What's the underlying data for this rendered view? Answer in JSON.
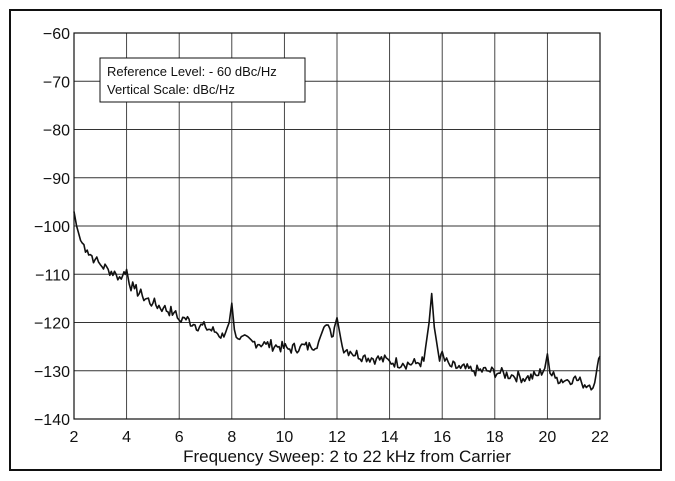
{
  "chart_data": {
    "type": "line",
    "title": "",
    "xlabel": "Frequency Sweep: 2 to 22 kHz from Carrier",
    "ylabel": "",
    "xlim": [
      2,
      22
    ],
    "ylim": [
      -140,
      -60
    ],
    "xticks": [
      2,
      4,
      6,
      8,
      10,
      12,
      14,
      16,
      18,
      20,
      22
    ],
    "yticks": [
      -60,
      -70,
      -80,
      -90,
      -100,
      -110,
      -120,
      -130,
      -140
    ],
    "grid": true,
    "legend": "none",
    "annotation": {
      "lines": [
        "Reference Level: - 60 dBc/Hz",
        "Vertical Scale: dBc/Hz"
      ],
      "placement": "top-left"
    },
    "series": [
      {
        "x": [
          2.0,
          2.1,
          2.25,
          2.5,
          2.8,
          3.0,
          3.3,
          3.6,
          3.8,
          3.9,
          4.0,
          4.1,
          4.3,
          4.6,
          5.0,
          5.4,
          5.8,
          6.0,
          6.2,
          6.6,
          7.0,
          7.4,
          7.7,
          7.9,
          8.0,
          8.1,
          8.3,
          8.8,
          9.3,
          9.8,
          10.2,
          10.6,
          11.0,
          11.3,
          11.5,
          11.6,
          11.8,
          11.9,
          12.0,
          12.1,
          12.2,
          12.5,
          13.0,
          13.5,
          14.0,
          14.5,
          15.0,
          15.3,
          15.5,
          15.6,
          15.7,
          15.9,
          16.0,
          16.1,
          16.3,
          16.7,
          17.2,
          17.7,
          18.2,
          18.7,
          19.2,
          19.6,
          19.9,
          20.0,
          20.1,
          20.3,
          20.7,
          21.0,
          21.3,
          21.6,
          21.8,
          21.9,
          22.0
        ],
        "y": [
          -97,
          -100,
          -103,
          -105,
          -107,
          -108,
          -109,
          -110,
          -111,
          -109.5,
          -109,
          -112,
          -113,
          -114.5,
          -116,
          -117,
          -118,
          -119.5,
          -119,
          -120.5,
          -121,
          -122,
          -123,
          -120,
          -116,
          -121.5,
          -123.5,
          -124,
          -124.5,
          -125,
          -125.5,
          -125,
          -125,
          -124,
          -121,
          -120.5,
          -123,
          -121,
          -119,
          -122,
          -125,
          -126,
          -127,
          -127.5,
          -128,
          -128.5,
          -128.5,
          -128,
          -120,
          -114,
          -121,
          -128,
          -126,
          -128,
          -129,
          -129.5,
          -130,
          -130,
          -130.5,
          -131,
          -131.5,
          -131,
          -129.5,
          -126.5,
          -130.5,
          -131.5,
          -132,
          -131.5,
          -132.5,
          -133,
          -132.5,
          -129,
          -127
        ]
      }
    ]
  }
}
